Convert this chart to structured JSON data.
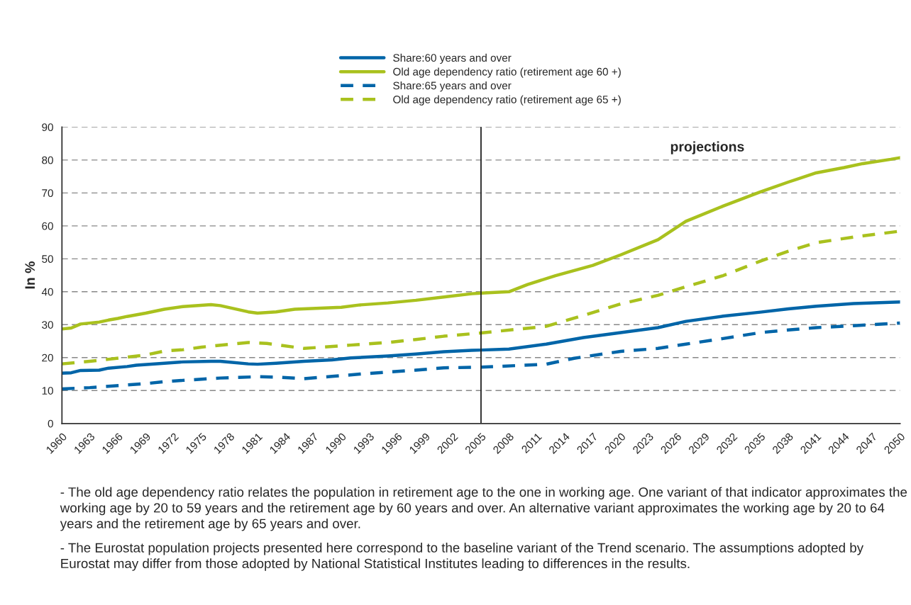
{
  "chart_data": {
    "type": "line",
    "ylabel": "In %",
    "xlim": [
      1960,
      2050
    ],
    "xticks": [
      1960,
      1963,
      1966,
      1969,
      1972,
      1975,
      1978,
      1981,
      1984,
      1987,
      1990,
      1993,
      1996,
      1999,
      2002,
      2005,
      2008,
      2011,
      2014,
      2017,
      2020,
      2023,
      2026,
      2029,
      2032,
      2035,
      2038,
      2041,
      2044,
      2047,
      2050
    ],
    "ylim": [
      0,
      90
    ],
    "yticks": [
      0,
      10,
      20,
      30,
      40,
      50,
      60,
      70,
      80,
      90
    ],
    "grid": "y",
    "legend": "top",
    "marker": "none",
    "ref_lines": [
      {
        "axis": "x",
        "value": 2005,
        "color": "#222222",
        "line_style": "solid"
      }
    ],
    "annotations": [
      "projections",
      "- The old age dependency ratio relates the population in retirement age to the one in working age. One variant of that indicator approximates the working age by 20 to 59 years and the retirement age by 60 years and over. An alternative variant approximates the working age by 20 to 64 years and the retirement age by 65 years and over.",
      "- The Eurostat population projects presented here correspond to the baseline variant of the Trend scenario. The assumptions adopted by Eurostat may differ from those adopted by National Statistical Institutes leading to differences in the results."
    ],
    "series": [
      {
        "name": "Share:60 years and over",
        "color": "#0065a8",
        "line_style": "solid",
        "x": [
          1960,
          1961,
          1962,
          1964,
          1965,
          1967,
          1968,
          1971,
          1973,
          1976,
          1977,
          1980,
          1981,
          1983,
          1986,
          1989,
          1991,
          1995,
          1998,
          2001,
          2004,
          2005,
          2008,
          2012,
          2016,
          2020,
          2024,
          2027,
          2031,
          2035,
          2038,
          2041,
          2045,
          2050
        ],
        "values": [
          15.3,
          15.4,
          16.1,
          16.2,
          16.8,
          17.3,
          17.7,
          18.3,
          18.7,
          18.9,
          18.9,
          18.1,
          18.0,
          18.3,
          18.9,
          19.3,
          19.9,
          20.5,
          21.1,
          21.8,
          22.2,
          22.3,
          22.6,
          24.1,
          26.1,
          27.6,
          29.1,
          31.0,
          32.6,
          33.8,
          34.8,
          35.6,
          36.4,
          36.9
        ]
      },
      {
        "name": "Old age dependency ratio (retirement age 60 +)",
        "color": "#a9c11e",
        "line_style": "solid",
        "x": [
          1960,
          1961,
          1962,
          1964,
          1965,
          1966,
          1967,
          1969,
          1971,
          1973,
          1976,
          1977,
          1980,
          1981,
          1983,
          1985,
          1990,
          1992,
          1995,
          1998,
          2001,
          2004,
          2005,
          2008,
          2010,
          2013,
          2017,
          2020,
          2024,
          2027,
          2031,
          2035,
          2038,
          2041,
          2044,
          2046,
          2049,
          2050
        ],
        "values": [
          28.7,
          29.0,
          30.2,
          30.8,
          31.4,
          31.9,
          32.5,
          33.5,
          34.7,
          35.5,
          36.1,
          35.8,
          33.9,
          33.5,
          33.9,
          34.7,
          35.3,
          36.0,
          36.6,
          37.4,
          38.4,
          39.4,
          39.6,
          40.0,
          42.2,
          44.9,
          48.0,
          51.2,
          55.8,
          61.4,
          66.0,
          70.3,
          73.3,
          76.1,
          77.7,
          78.9,
          80.2,
          80.7
        ]
      },
      {
        "name": "Share:65 years and over",
        "color": "#0065a8",
        "line_style": "dashed",
        "x": [
          1960,
          1963,
          1965,
          1969,
          1971,
          1973,
          1977,
          1981,
          1983,
          1986,
          1989,
          1992,
          1995,
          1998,
          2001,
          2005,
          2012,
          2015,
          2020,
          2024,
          2027,
          2031,
          2035,
          2038,
          2041,
          2045,
          2050
        ],
        "values": [
          10.5,
          10.9,
          11.3,
          12.1,
          12.7,
          13.1,
          13.8,
          14.2,
          14.1,
          13.6,
          14.3,
          15.0,
          15.6,
          16.2,
          16.9,
          17.1,
          18.0,
          19.8,
          21.9,
          22.8,
          24.1,
          25.8,
          27.6,
          28.4,
          29.1,
          29.7,
          30.5
        ]
      },
      {
        "name": "Old age dependency ratio (retirement age 65 +)",
        "color": "#a9c11e",
        "line_style": "dashed",
        "x": [
          1960,
          1963,
          1965,
          1969,
          1971,
          1973,
          1975,
          1980,
          1982,
          1986,
          1987,
          1991,
          1995,
          1998,
          2001,
          2005,
          2012,
          2016,
          2020,
          2024,
          2027,
          2031,
          2035,
          2038,
          2041,
          2045,
          2050
        ],
        "values": [
          18.1,
          18.9,
          19.5,
          20.8,
          22.0,
          22.4,
          23.2,
          24.6,
          24.3,
          22.8,
          23.0,
          23.8,
          24.6,
          25.5,
          26.5,
          27.5,
          29.5,
          32.8,
          36.3,
          38.9,
          41.5,
          44.9,
          49.3,
          52.3,
          54.9,
          56.6,
          58.4
        ]
      }
    ]
  }
}
